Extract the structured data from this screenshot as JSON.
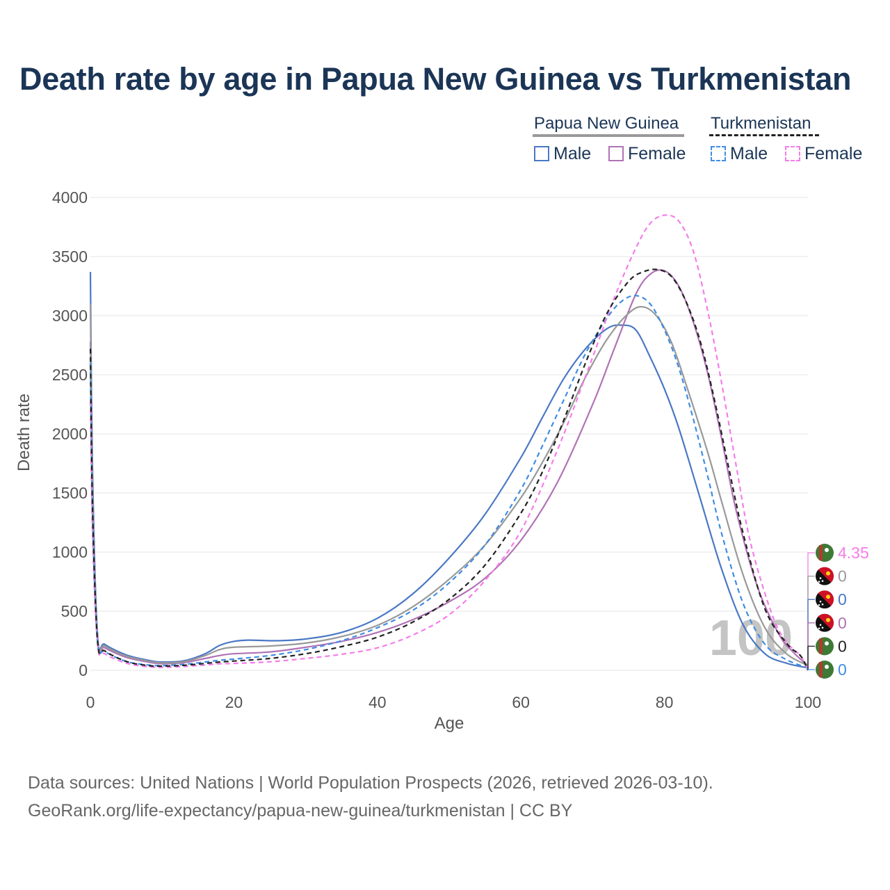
{
  "title": "Death rate by age in Papua New Guinea vs Turkmenistan",
  "legend": {
    "groups": [
      {
        "name": "Papua New Guinea",
        "line_color": "#999999",
        "line_style": "solid"
      },
      {
        "name": "Turkmenistan",
        "line_color": "#222222",
        "line_style": "dashed"
      }
    ],
    "items": [
      {
        "label": "Male",
        "color": "#4a78c4",
        "style": "solid"
      },
      {
        "label": "Female",
        "color": "#b072b5",
        "style": "solid"
      },
      {
        "label": "Male",
        "color": "#3f8de3",
        "style": "dashed"
      },
      {
        "label": "Female",
        "color": "#f57ce9",
        "style": "dashed"
      }
    ]
  },
  "chart_data": {
    "type": "line",
    "title": "Death rate by age in Papua New Guinea vs Turkmenistan",
    "xlabel": "Age",
    "ylabel": "Death rate",
    "xlim": [
      0,
      100
    ],
    "ylim": [
      0,
      4000
    ],
    "x_ticks": [
      0,
      20,
      40,
      60,
      80,
      100
    ],
    "y_ticks": [
      0,
      500,
      1000,
      1500,
      2000,
      2500,
      3000,
      3500,
      4000
    ],
    "grid": true,
    "year_watermark": "100",
    "series": [
      {
        "name": "Papua New Guinea Male",
        "color": "#4a78c4",
        "dash": false,
        "width": 2.2,
        "points": [
          [
            0,
            3370
          ],
          [
            0.3,
            1700
          ],
          [
            1,
            300
          ],
          [
            2,
            220
          ],
          [
            5,
            130
          ],
          [
            8,
            85
          ],
          [
            10,
            70
          ],
          [
            13,
            80
          ],
          [
            16,
            140
          ],
          [
            18,
            210
          ],
          [
            20,
            245
          ],
          [
            22,
            255
          ],
          [
            26,
            250
          ],
          [
            30,
            265
          ],
          [
            35,
            320
          ],
          [
            40,
            440
          ],
          [
            45,
            650
          ],
          [
            50,
            950
          ],
          [
            55,
            1320
          ],
          [
            60,
            1800
          ],
          [
            63,
            2140
          ],
          [
            66,
            2470
          ],
          [
            69,
            2720
          ],
          [
            72,
            2890
          ],
          [
            74,
            2920
          ],
          [
            76,
            2880
          ],
          [
            78,
            2650
          ],
          [
            80,
            2380
          ],
          [
            82,
            2050
          ],
          [
            85,
            1450
          ],
          [
            88,
            850
          ],
          [
            91,
            380
          ],
          [
            94,
            140
          ],
          [
            97,
            60
          ],
          [
            100,
            20
          ]
        ]
      },
      {
        "name": "Papua New Guinea Female",
        "color": "#b072b5",
        "dash": false,
        "width": 2.2,
        "points": [
          [
            0,
            2780
          ],
          [
            0.3,
            1400
          ],
          [
            1,
            250
          ],
          [
            2,
            190
          ],
          [
            5,
            110
          ],
          [
            8,
            70
          ],
          [
            10,
            55
          ],
          [
            13,
            65
          ],
          [
            16,
            100
          ],
          [
            18,
            125
          ],
          [
            20,
            140
          ],
          [
            25,
            155
          ],
          [
            30,
            195
          ],
          [
            35,
            245
          ],
          [
            40,
            320
          ],
          [
            45,
            430
          ],
          [
            50,
            580
          ],
          [
            55,
            780
          ],
          [
            60,
            1100
          ],
          [
            65,
            1580
          ],
          [
            70,
            2250
          ],
          [
            73,
            2720
          ],
          [
            76,
            3180
          ],
          [
            78,
            3350
          ],
          [
            80,
            3380
          ],
          [
            82,
            3250
          ],
          [
            84,
            2950
          ],
          [
            86,
            2520
          ],
          [
            88,
            1950
          ],
          [
            90,
            1350
          ],
          [
            93,
            700
          ],
          [
            96,
            300
          ],
          [
            98,
            150
          ],
          [
            100,
            40
          ]
        ]
      },
      {
        "name": "Papua New Guinea Both",
        "color": "#999999",
        "dash": false,
        "width": 2.2,
        "points": [
          [
            0,
            3100
          ],
          [
            0.3,
            1550
          ],
          [
            1,
            275
          ],
          [
            2,
            205
          ],
          [
            5,
            120
          ],
          [
            8,
            78
          ],
          [
            10,
            63
          ],
          [
            13,
            72
          ],
          [
            16,
            125
          ],
          [
            18,
            175
          ],
          [
            20,
            195
          ],
          [
            25,
            205
          ],
          [
            30,
            230
          ],
          [
            35,
            285
          ],
          [
            40,
            380
          ],
          [
            45,
            540
          ],
          [
            50,
            770
          ],
          [
            55,
            1060
          ],
          [
            60,
            1460
          ],
          [
            63,
            1760
          ],
          [
            66,
            2100
          ],
          [
            69,
            2480
          ],
          [
            72,
            2800
          ],
          [
            75,
            3020
          ],
          [
            77,
            3075
          ],
          [
            79,
            2990
          ],
          [
            81,
            2770
          ],
          [
            83,
            2420
          ],
          [
            86,
            1850
          ],
          [
            88,
            1420
          ],
          [
            91,
            800
          ],
          [
            94,
            360
          ],
          [
            97,
            140
          ],
          [
            100,
            40
          ]
        ]
      },
      {
        "name": "Turkmenistan Male",
        "color": "#3f8de3",
        "dash": true,
        "width": 2.2,
        "points": [
          [
            0,
            2600
          ],
          [
            0.3,
            1300
          ],
          [
            1,
            240
          ],
          [
            2,
            160
          ],
          [
            5,
            75
          ],
          [
            8,
            45
          ],
          [
            10,
            40
          ],
          [
            13,
            50
          ],
          [
            16,
            70
          ],
          [
            18,
            85
          ],
          [
            20,
            95
          ],
          [
            25,
            125
          ],
          [
            30,
            175
          ],
          [
            35,
            250
          ],
          [
            40,
            360
          ],
          [
            45,
            510
          ],
          [
            50,
            740
          ],
          [
            55,
            1060
          ],
          [
            60,
            1530
          ],
          [
            63,
            1900
          ],
          [
            66,
            2290
          ],
          [
            69,
            2680
          ],
          [
            72,
            2980
          ],
          [
            74,
            3120
          ],
          [
            76,
            3170
          ],
          [
            78,
            3100
          ],
          [
            80,
            2880
          ],
          [
            82,
            2560
          ],
          [
            84,
            2130
          ],
          [
            86,
            1650
          ],
          [
            88,
            1150
          ],
          [
            91,
            560
          ],
          [
            94,
            220
          ],
          [
            97,
            90
          ],
          [
            100,
            20
          ]
        ]
      },
      {
        "name": "Turkmenistan Female",
        "color": "#f57ce9",
        "dash": true,
        "width": 2.2,
        "points": [
          [
            0,
            2280
          ],
          [
            0.3,
            1150
          ],
          [
            1,
            220
          ],
          [
            2,
            140
          ],
          [
            5,
            60
          ],
          [
            8,
            30
          ],
          [
            10,
            25
          ],
          [
            13,
            32
          ],
          [
            16,
            45
          ],
          [
            18,
            55
          ],
          [
            20,
            58
          ],
          [
            25,
            72
          ],
          [
            30,
            100
          ],
          [
            35,
            135
          ],
          [
            40,
            190
          ],
          [
            45,
            300
          ],
          [
            50,
            470
          ],
          [
            55,
            760
          ],
          [
            60,
            1180
          ],
          [
            65,
            1850
          ],
          [
            70,
            2650
          ],
          [
            73,
            3150
          ],
          [
            76,
            3570
          ],
          [
            78,
            3780
          ],
          [
            80,
            3850
          ],
          [
            82,
            3800
          ],
          [
            84,
            3550
          ],
          [
            86,
            3050
          ],
          [
            88,
            2420
          ],
          [
            90,
            1730
          ],
          [
            92,
            1080
          ],
          [
            95,
            470
          ],
          [
            97,
            240
          ],
          [
            99,
            120
          ],
          [
            100,
            0
          ]
        ]
      },
      {
        "name": "Turkmenistan Both",
        "color": "#222222",
        "dash": true,
        "width": 2.2,
        "points": [
          [
            0,
            2720
          ],
          [
            0.3,
            1370
          ],
          [
            1,
            250
          ],
          [
            2,
            165
          ],
          [
            5,
            75
          ],
          [
            8,
            40
          ],
          [
            10,
            35
          ],
          [
            13,
            42
          ],
          [
            16,
            58
          ],
          [
            18,
            70
          ],
          [
            20,
            78
          ],
          [
            25,
            100
          ],
          [
            30,
            140
          ],
          [
            35,
            200
          ],
          [
            40,
            280
          ],
          [
            45,
            410
          ],
          [
            50,
            600
          ],
          [
            55,
            890
          ],
          [
            60,
            1330
          ],
          [
            63,
            1680
          ],
          [
            66,
            2120
          ],
          [
            69,
            2600
          ],
          [
            72,
            3020
          ],
          [
            75,
            3290
          ],
          [
            77,
            3370
          ],
          [
            79,
            3390
          ],
          [
            81,
            3330
          ],
          [
            83,
            3120
          ],
          [
            85,
            2780
          ],
          [
            87,
            2280
          ],
          [
            89,
            1700
          ],
          [
            91,
            1150
          ],
          [
            94,
            520
          ],
          [
            97,
            230
          ],
          [
            99,
            120
          ],
          [
            100,
            0
          ]
        ]
      }
    ],
    "end_labels": [
      {
        "text": "4.35",
        "color": "#f57ce9",
        "flag": "turkmenistan",
        "ref": 0
      },
      {
        "text": "0",
        "color": "#999999",
        "flag": "papua-new-guinea",
        "ref": 0
      },
      {
        "text": "0",
        "color": "#4a78c4",
        "flag": "papua-new-guinea",
        "ref": 0
      },
      {
        "text": "0",
        "color": "#b072b5",
        "flag": "papua-new-guinea",
        "ref": 0
      },
      {
        "text": "0",
        "color": "#222222",
        "flag": "turkmenistan",
        "ref": 0
      },
      {
        "text": "0",
        "color": "#3f8de3",
        "flag": "turkmenistan",
        "ref": 0
      }
    ]
  },
  "source": {
    "line1": "Data sources: United Nations | World Population Prospects (2026, retrieved 2026-03-10).",
    "line2": "GeoRank.org/life-expectancy/papua-new-guinea/turkmenistan | CC BY"
  }
}
